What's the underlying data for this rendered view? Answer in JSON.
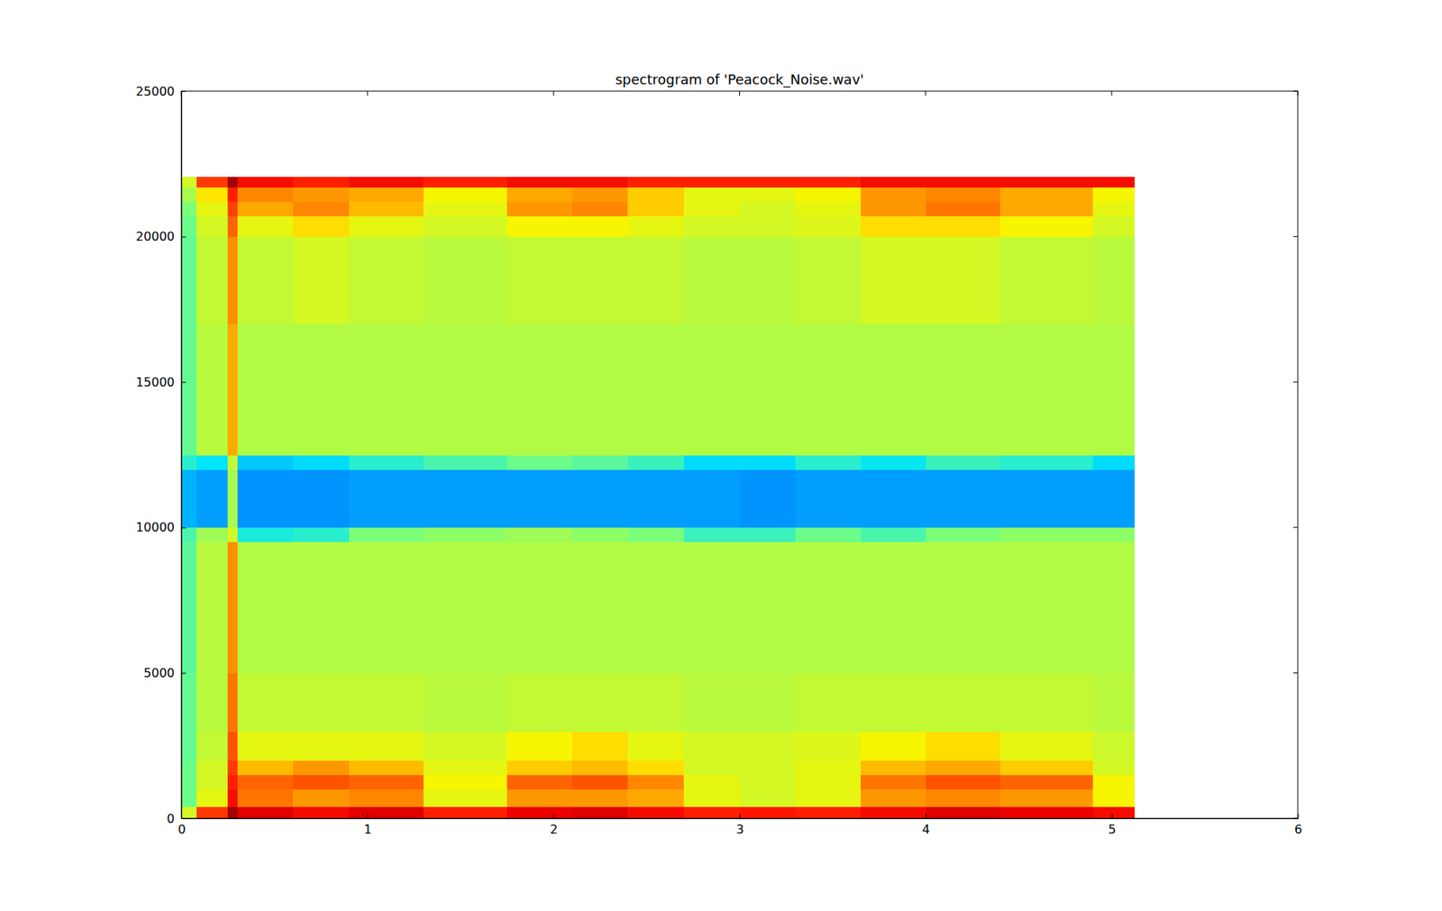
{
  "chart_data": {
    "type": "heatmap",
    "title": "spectrogram of 'Peacock_Noise.wav'",
    "xlim": [
      0,
      6
    ],
    "xticks": [
      0,
      1,
      2,
      3,
      4,
      5,
      6
    ],
    "ylim": [
      0,
      25000
    ],
    "yticks": [
      0,
      5000,
      10000,
      15000,
      20000,
      25000
    ],
    "x_edges": [
      0,
      0.08,
      0.25,
      0.3,
      0.6,
      0.9,
      1.3,
      1.75,
      2.1,
      2.4,
      2.7,
      3.0,
      3.3,
      3.65,
      4.0,
      4.4,
      4.9,
      5.12
    ],
    "y_edges": [
      0,
      400,
      1000,
      1500,
      2000,
      3000,
      5000,
      9500,
      10000,
      12000,
      12500,
      17000,
      20000,
      20700,
      21200,
      21700,
      22050
    ],
    "color_range": [
      0,
      100
    ],
    "cells": [
      [
        60,
        85,
        97,
        92,
        90,
        92,
        88,
        91,
        92,
        90,
        88,
        89,
        88,
        90,
        92,
        91,
        90
      ],
      [
        48,
        62,
        90,
        78,
        74,
        76,
        62,
        74,
        74,
        72,
        62,
        60,
        62,
        74,
        76,
        74,
        64
      ],
      [
        48,
        60,
        88,
        80,
        82,
        80,
        64,
        80,
        82,
        76,
        62,
        60,
        62,
        78,
        82,
        80,
        64
      ],
      [
        48,
        60,
        85,
        70,
        74,
        70,
        62,
        68,
        70,
        66,
        60,
        60,
        62,
        70,
        72,
        68,
        60
      ],
      [
        47,
        58,
        82,
        62,
        62,
        62,
        60,
        64,
        66,
        62,
        60,
        60,
        61,
        64,
        66,
        62,
        59
      ],
      [
        47,
        57,
        78,
        58,
        58,
        58,
        57,
        58,
        58,
        58,
        57,
        57,
        58,
        58,
        58,
        58,
        57
      ],
      [
        46,
        57,
        75,
        56,
        56,
        56,
        56,
        56,
        56,
        56,
        56,
        56,
        56,
        56,
        56,
        56,
        56
      ],
      [
        44,
        54,
        60,
        38,
        40,
        50,
        52,
        54,
        52,
        50,
        42,
        42,
        48,
        44,
        50,
        52,
        52
      ],
      [
        30,
        28,
        55,
        27,
        27,
        28,
        28,
        28,
        28,
        28,
        28,
        27,
        28,
        28,
        28,
        28,
        28
      ],
      [
        40,
        35,
        58,
        32,
        34,
        40,
        44,
        48,
        46,
        42,
        34,
        34,
        40,
        36,
        42,
        40,
        34
      ],
      [
        47,
        57,
        72,
        56,
        56,
        56,
        56,
        56,
        56,
        56,
        56,
        56,
        56,
        56,
        56,
        56,
        56
      ],
      [
        47,
        58,
        75,
        58,
        60,
        58,
        57,
        58,
        58,
        58,
        57,
        57,
        58,
        60,
        60,
        58,
        57
      ],
      [
        48,
        60,
        80,
        62,
        66,
        62,
        60,
        64,
        64,
        62,
        60,
        60,
        61,
        66,
        66,
        64,
        60
      ],
      [
        50,
        62,
        84,
        72,
        76,
        70,
        62,
        74,
        76,
        68,
        62,
        60,
        62,
        74,
        78,
        72,
        62
      ],
      [
        55,
        65,
        88,
        76,
        74,
        72,
        64,
        72,
        74,
        68,
        62,
        62,
        64,
        74,
        76,
        72,
        64
      ],
      [
        60,
        85,
        97,
        90,
        88,
        90,
        88,
        90,
        90,
        88,
        88,
        88,
        88,
        90,
        90,
        90,
        90
      ]
    ]
  }
}
